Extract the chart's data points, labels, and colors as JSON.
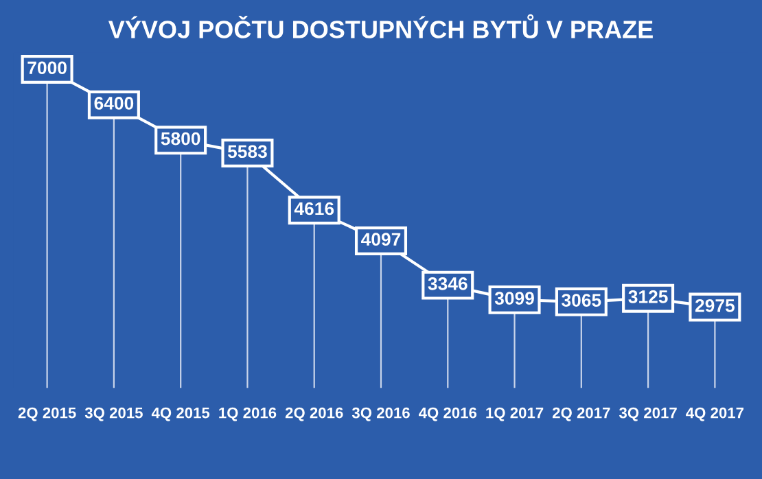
{
  "chart_data": {
    "type": "line",
    "title": "VÝVOJ POČTU DOSTUPNÝCH BYTŮ V PRAZE",
    "categories": [
      "2Q 2015",
      "3Q 2015",
      "4Q 2015",
      "1Q 2016",
      "2Q 2016",
      "3Q 2016",
      "4Q 2016",
      "1Q 2017",
      "2Q 2017",
      "3Q 2017",
      "4Q 2017"
    ],
    "series": [
      {
        "color": "#ffffff",
        "values": [
          7000,
          6400,
          5800,
          5583,
          4616,
          4097,
          3346,
          3099,
          3065,
          3125,
          2975
        ]
      }
    ],
    "tick_labels": "x",
    "data_labels": true,
    "grid": "x",
    "legend": false,
    "marker": "square",
    "line_style": "solid"
  }
}
